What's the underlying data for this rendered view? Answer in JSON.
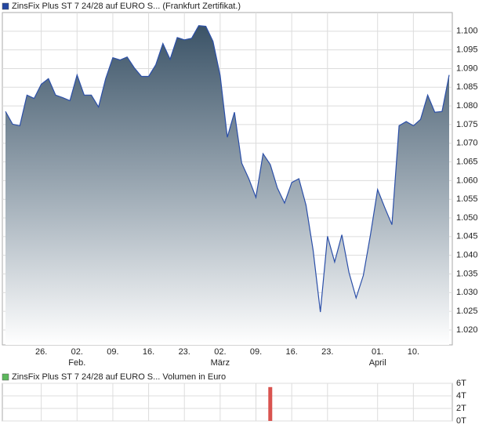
{
  "chart_data": [
    {
      "type": "area",
      "title": "ZinsFix Plus ST 7 24/28 auf EURO S... (Frankfurt Zertifikat.)",
      "legend_color": "#2346a0",
      "color": "#2b4fa8",
      "values": [
        1.0785,
        1.0751,
        1.0747,
        1.0829,
        1.082,
        1.0858,
        1.0873,
        1.0829,
        1.0822,
        1.0814,
        1.0883,
        1.0829,
        1.0829,
        1.0797,
        1.0873,
        1.0929,
        1.0923,
        1.0931,
        1.0902,
        1.0879,
        1.0879,
        1.091,
        1.0967,
        1.0925,
        1.0983,
        1.0977,
        1.0981,
        1.1015,
        1.1013,
        1.0973,
        1.0881,
        1.0716,
        1.0783,
        1.0647,
        1.0605,
        1.0555,
        1.0672,
        1.0643,
        1.058,
        1.054,
        1.0595,
        1.0605,
        1.0534,
        1.0413,
        1.0248,
        1.0451,
        1.0382,
        1.0455,
        1.0354,
        1.0286,
        1.0346,
        1.0455,
        1.0576,
        1.0528,
        1.0482,
        1.0747,
        1.0758,
        1.0747,
        1.0764,
        1.0829,
        1.0783,
        1.0785,
        1.0883
      ],
      "xlim": [
        0,
        62
      ],
      "xticks": [
        {
          "value": 5,
          "label": "26."
        },
        {
          "value": 10,
          "label": "02."
        },
        {
          "value": 15,
          "label": "09."
        },
        {
          "value": 20,
          "label": "16."
        },
        {
          "value": 25,
          "label": "23."
        },
        {
          "value": 30,
          "label": "02."
        },
        {
          "value": 35,
          "label": "09."
        },
        {
          "value": 40,
          "label": "16."
        },
        {
          "value": 45,
          "label": "23."
        },
        {
          "value": 52,
          "label": "01."
        },
        {
          "value": 57,
          "label": "10."
        }
      ],
      "month_ticks": [
        {
          "value": 10,
          "label": "Feb."
        },
        {
          "value": 30,
          "label": "März"
        },
        {
          "value": 52,
          "label": "April"
        }
      ],
      "ylim": [
        1.016,
        1.105
      ],
      "yticks": [
        {
          "value": 1.02,
          "label": "1.020"
        },
        1.025,
        {
          "value": 1.03,
          "label": "1.030"
        },
        1.035,
        {
          "value": 1.04,
          "label": "1.040"
        },
        1.045,
        {
          "value": 1.05,
          "label": "1.050"
        },
        1.055,
        {
          "value": 1.06,
          "label": "1.060"
        },
        1.065,
        {
          "value": 1.07,
          "label": "1.070"
        },
        1.075,
        {
          "value": 1.08,
          "label": "1.080"
        },
        1.085,
        {
          "value": 1.09,
          "label": "1.090"
        },
        1.095,
        {
          "value": 1.1,
          "label": "1.100"
        }
      ],
      "grid": true
    },
    {
      "type": "bar",
      "title": "ZinsFix Plus ST 7 24/28 auf EURO S... Volumen in Euro",
      "legend_color": "#5cb85c",
      "color": "#d9534f",
      "values": [
        0,
        0,
        0,
        0,
        0,
        0,
        0,
        0,
        0,
        0,
        0,
        0,
        0,
        0,
        0,
        0,
        0,
        0,
        0,
        0,
        0,
        0,
        0,
        0,
        0,
        0,
        0,
        0,
        0,
        0,
        0,
        0,
        0,
        0,
        0,
        0,
        0,
        5400,
        0,
        0,
        0,
        0,
        0,
        0,
        0,
        0,
        0,
        0,
        0,
        0,
        0,
        0,
        0,
        0,
        0,
        0,
        0,
        0,
        0,
        0,
        0,
        0,
        0
      ],
      "xlim": [
        0,
        62
      ],
      "ylim": [
        0,
        6000
      ],
      "yticks": [
        {
          "value": 0,
          "label": "0T"
        },
        {
          "value": 2000,
          "label": "2T"
        },
        {
          "value": 4000,
          "label": "4T"
        },
        {
          "value": 6000,
          "label": "6T"
        }
      ],
      "grid": true
    }
  ]
}
